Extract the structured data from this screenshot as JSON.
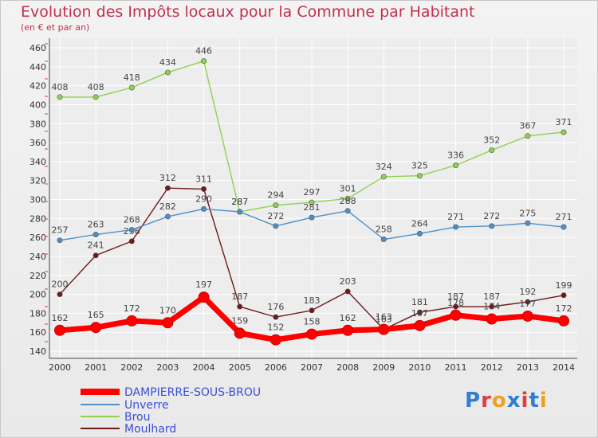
{
  "chart_data": {
    "type": "line",
    "title": "Evolution des Impôts locaux pour la Commune par Habitant",
    "subtitle": "(en € et par an)",
    "categories": [
      "2000",
      "2001",
      "2002",
      "2003",
      "2004",
      "2005",
      "2006",
      "2007",
      "2008",
      "2009",
      "2010",
      "2011",
      "2012",
      "2013",
      "2014"
    ],
    "ylim": [
      140,
      460
    ],
    "yticks": [
      140,
      160,
      180,
      200,
      220,
      240,
      260,
      280,
      300,
      320,
      340,
      360,
      380,
      400,
      420,
      440,
      460
    ],
    "grid": true,
    "series": [
      {
        "name": "Moulhard",
        "color": "#6e1a1a",
        "values": [
          200,
          241,
          256,
          312,
          311,
          187,
          176,
          183,
          203,
          163,
          181,
          187,
          187,
          192,
          199
        ],
        "labels": [
          "200",
          "241",
          "256",
          "312",
          "311",
          "187",
          "176",
          "183",
          "203",
          "163",
          "181",
          "187",
          "187",
          "192",
          "199"
        ]
      },
      {
        "name": "Brou",
        "color": "#8fd14f",
        "values": [
          408,
          408,
          418,
          434,
          446,
          287,
          294,
          297,
          301,
          324,
          325,
          336,
          352,
          367,
          371
        ],
        "labels": [
          "408",
          "408",
          "418",
          "434",
          "446",
          "287",
          "294",
          "297",
          "301",
          "324",
          "325",
          "336",
          "352",
          "367",
          "371"
        ]
      },
      {
        "name": "Unverre",
        "color": "#4f8fc7",
        "values": [
          257,
          263,
          268,
          282,
          290,
          287,
          272,
          281,
          288,
          258,
          264,
          271,
          272,
          275,
          271
        ],
        "labels": [
          "257",
          "263",
          "268",
          "282",
          "290",
          "287",
          "272",
          "281",
          "288",
          "258",
          "264",
          "271",
          "272",
          "275",
          "271"
        ]
      },
      {
        "name": "DAMPIERRE-SOUS-BROU",
        "color": "#ff0000",
        "values": [
          162,
          165,
          172,
          170,
          197,
          159,
          152,
          158,
          162,
          163,
          167,
          178,
          174,
          177,
          172
        ],
        "labels": [
          "162",
          "165",
          "172",
          "170",
          "197",
          "159",
          "152",
          "158",
          "162",
          "163",
          "167",
          "178",
          "174",
          "177",
          "172"
        ]
      }
    ],
    "legend": {
      "position": "bottom-left",
      "order": [
        "DAMPIERRE-SOUS-BROU",
        "Unverre",
        "Brou",
        "Moulhard"
      ]
    }
  },
  "logo": {
    "text": "Proxiti"
  }
}
